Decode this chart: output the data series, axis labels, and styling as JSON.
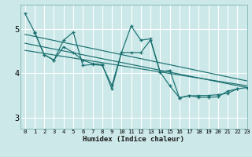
{
  "xlabel": "Humidex (Indice chaleur)",
  "bg_color": "#cce8e8",
  "grid_color": "#ffffff",
  "line_color": "#1a7070",
  "xlim": [
    -0.5,
    23
  ],
  "ylim": [
    2.75,
    5.55
  ],
  "yticks": [
    3,
    4,
    5
  ],
  "xticks": [
    0,
    1,
    2,
    3,
    4,
    5,
    6,
    7,
    8,
    9,
    10,
    11,
    12,
    13,
    14,
    15,
    16,
    17,
    18,
    19,
    20,
    21,
    22,
    23
  ],
  "series1_x": [
    0,
    1,
    2,
    3,
    4,
    5,
    6,
    7,
    8,
    9,
    10,
    11,
    12,
    13,
    14,
    15,
    16,
    17,
    18,
    19,
    20,
    21,
    22
  ],
  "series1_y": [
    5.35,
    4.93,
    4.42,
    4.3,
    4.75,
    4.93,
    4.18,
    4.2,
    4.18,
    3.73,
    4.47,
    5.07,
    4.75,
    4.78,
    4.03,
    4.07,
    3.45,
    3.5,
    3.46,
    3.46,
    3.47,
    3.6,
    3.65
  ],
  "series2_x": [
    1,
    2,
    3,
    4,
    5,
    6,
    7,
    8,
    9,
    10,
    11,
    12,
    13,
    14,
    15,
    16,
    17,
    18,
    19,
    20,
    21,
    22,
    23
  ],
  "series2_y": [
    4.92,
    4.42,
    4.3,
    4.6,
    4.47,
    4.3,
    4.22,
    4.2,
    3.65,
    4.47,
    4.47,
    4.47,
    4.75,
    4.03,
    3.72,
    3.45,
    3.49,
    3.5,
    3.5,
    3.52,
    3.55,
    3.65,
    3.68
  ],
  "trend1_x": [
    0,
    23
  ],
  "trend1_y": [
    4.88,
    3.83
  ],
  "trend2_x": [
    0,
    23
  ],
  "trend2_y": [
    4.68,
    3.68
  ],
  "trend3_x": [
    0,
    23
  ],
  "trend3_y": [
    4.52,
    3.72
  ]
}
